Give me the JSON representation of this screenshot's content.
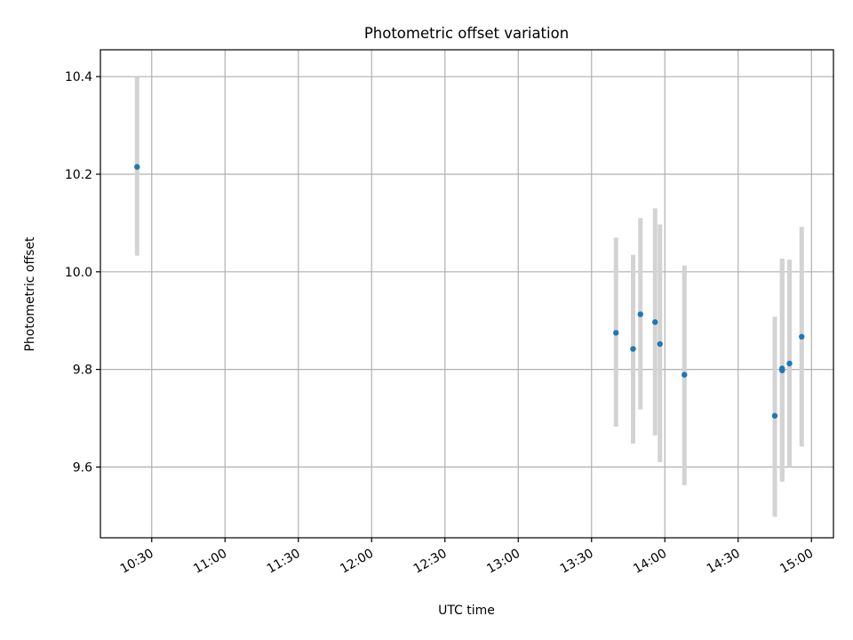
{
  "chart_data": {
    "type": "scatter",
    "title": "Photometric offset variation",
    "xlabel": "UTC time",
    "ylabel": "Photometric offset",
    "xlim": [
      "10:09",
      "15:09"
    ],
    "ylim": [
      9.455,
      10.455
    ],
    "x_ticks": [
      "10:30",
      "11:00",
      "11:30",
      "12:00",
      "12:30",
      "13:00",
      "13:30",
      "14:00",
      "14:30",
      "15:00"
    ],
    "y_ticks": [
      9.6,
      9.8,
      10.0,
      10.2,
      10.4
    ],
    "y_tick_labels": [
      "9.6",
      "9.8",
      "10.0",
      "10.2",
      "10.4"
    ],
    "grid": true,
    "marker_color": "#1f77b4",
    "errorbar_color": "#d3d3d3",
    "points": [
      {
        "x": "10:24",
        "y": 10.215,
        "yerr_low": 10.033,
        "yerr_high": 10.4
      },
      {
        "x": "13:40",
        "y": 9.875,
        "yerr_low": 9.683,
        "yerr_high": 10.07
      },
      {
        "x": "13:47",
        "y": 9.842,
        "yerr_low": 9.648,
        "yerr_high": 10.035
      },
      {
        "x": "13:50",
        "y": 9.913,
        "yerr_low": 9.718,
        "yerr_high": 10.11
      },
      {
        "x": "13:56",
        "y": 9.897,
        "yerr_low": 9.665,
        "yerr_high": 10.13
      },
      {
        "x": "13:58",
        "y": 9.852,
        "yerr_low": 9.61,
        "yerr_high": 10.097
      },
      {
        "x": "14:08",
        "y": 9.789,
        "yerr_low": 9.563,
        "yerr_high": 10.013
      },
      {
        "x": "14:45",
        "y": 9.705,
        "yerr_low": 9.498,
        "yerr_high": 9.908
      },
      {
        "x": "14:48",
        "y": 9.802,
        "yerr_low": 9.578,
        "yerr_high": 10.027
      },
      {
        "x": "14:48",
        "y": 9.798,
        "yerr_low": 9.57,
        "yerr_high": 10.027
      },
      {
        "x": "14:51",
        "y": 9.812,
        "yerr_low": 9.6,
        "yerr_high": 10.025
      },
      {
        "x": "14:56",
        "y": 9.867,
        "yerr_low": 9.642,
        "yerr_high": 10.092
      }
    ]
  }
}
